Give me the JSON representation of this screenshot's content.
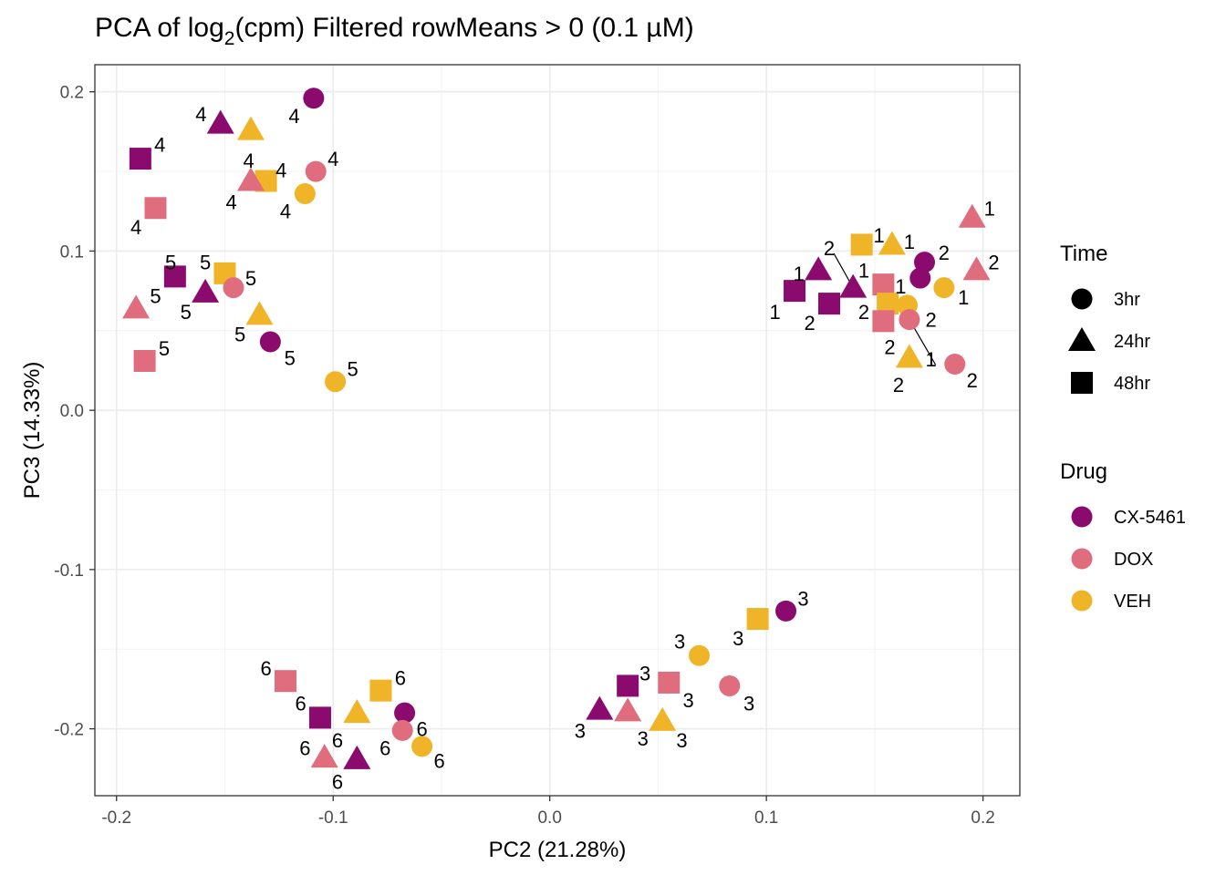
{
  "chart_data": {
    "type": "scatter",
    "title_main": "PCA of log",
    "title_sub": "2",
    "title_rest": "(cpm) Filtered rowMeans > 0 (0.1 µM)",
    "xlabel": "PC2 (21.28%)",
    "ylabel": "PC3 (14.33%)",
    "xlim": [
      -0.21,
      0.217
    ],
    "ylim": [
      -0.242,
      0.217
    ],
    "x_ticks": [
      -0.2,
      -0.1,
      0.0,
      0.1,
      0.2
    ],
    "x_tick_labels": [
      "-0.2",
      "-0.1",
      "0.0",
      "0.1",
      "0.2"
    ],
    "y_ticks": [
      -0.2,
      -0.1,
      0.0,
      0.1,
      0.2
    ],
    "y_tick_labels": [
      "-0.2",
      "-0.1",
      "0.0",
      "0.1",
      "0.2"
    ],
    "grid": true,
    "colors": {
      "CX-5461": "#8b0a6e",
      "DOX": "#e06d7d",
      "VEH": "#f0b429"
    },
    "legend_time": {
      "title": "Time",
      "items": [
        {
          "label": "3hr",
          "shape": "circle"
        },
        {
          "label": "24hr",
          "shape": "triangle"
        },
        {
          "label": "48hr",
          "shape": "square"
        }
      ]
    },
    "legend_drug": {
      "title": "Drug",
      "items": [
        {
          "label": "CX-5461",
          "drug": "CX-5461"
        },
        {
          "label": "DOX",
          "drug": "DOX"
        },
        {
          "label": "VEH",
          "drug": "VEH"
        }
      ]
    },
    "points": [
      {
        "x": -0.109,
        "y": 0.196,
        "drug": "CX-5461",
        "time": "3hr",
        "label": "4",
        "lx": -0.118,
        "ly": 0.185
      },
      {
        "x": -0.152,
        "y": 0.18,
        "drug": "CX-5461",
        "time": "24hr",
        "label": "4",
        "lx": -0.161,
        "ly": 0.186
      },
      {
        "x": -0.138,
        "y": 0.176,
        "drug": "VEH",
        "time": "24hr",
        "label": "4",
        "lx": -0.139,
        "ly": 0.157
      },
      {
        "x": -0.189,
        "y": 0.158,
        "drug": "CX-5461",
        "time": "48hr",
        "label": "4",
        "lx": -0.18,
        "ly": 0.167
      },
      {
        "x": -0.108,
        "y": 0.15,
        "drug": "DOX",
        "time": "3hr",
        "label": "4",
        "lx": -0.1,
        "ly": 0.158
      },
      {
        "x": -0.131,
        "y": 0.144,
        "drug": "VEH",
        "time": "48hr",
        "label": "4",
        "lx": -0.124,
        "ly": 0.151
      },
      {
        "x": -0.138,
        "y": 0.144,
        "drug": "DOX",
        "time": "24hr",
        "label": "4",
        "lx": -0.147,
        "ly": 0.131
      },
      {
        "x": -0.113,
        "y": 0.136,
        "drug": "VEH",
        "time": "3hr",
        "label": "4",
        "lx": -0.122,
        "ly": 0.125
      },
      {
        "x": -0.182,
        "y": 0.127,
        "drug": "DOX",
        "time": "48hr",
        "label": "4",
        "lx": -0.191,
        "ly": 0.115
      },
      {
        "x": -0.173,
        "y": 0.084,
        "drug": "CX-5461",
        "time": "48hr",
        "label": "5",
        "lx": -0.175,
        "ly": 0.093
      },
      {
        "x": -0.15,
        "y": 0.086,
        "drug": "VEH",
        "time": "48hr",
        "label": "5",
        "lx": -0.159,
        "ly": 0.093
      },
      {
        "x": -0.146,
        "y": 0.077,
        "drug": "DOX",
        "time": "3hr",
        "label": "5",
        "lx": -0.138,
        "ly": 0.083
      },
      {
        "x": -0.159,
        "y": 0.074,
        "drug": "CX-5461",
        "time": "24hr",
        "label": "5",
        "lx": -0.168,
        "ly": 0.062
      },
      {
        "x": -0.191,
        "y": 0.064,
        "drug": "DOX",
        "time": "24hr",
        "label": "5",
        "lx": -0.182,
        "ly": 0.072
      },
      {
        "x": -0.134,
        "y": 0.06,
        "drug": "VEH",
        "time": "24hr",
        "label": "5",
        "lx": -0.143,
        "ly": 0.048
      },
      {
        "x": -0.129,
        "y": 0.043,
        "drug": "CX-5461",
        "time": "3hr",
        "label": "5",
        "lx": -0.12,
        "ly": 0.033
      },
      {
        "x": -0.187,
        "y": 0.031,
        "drug": "DOX",
        "time": "48hr",
        "label": "5",
        "lx": -0.178,
        "ly": 0.039
      },
      {
        "x": -0.099,
        "y": 0.018,
        "drug": "VEH",
        "time": "3hr",
        "label": "5",
        "lx": -0.091,
        "ly": 0.026
      },
      {
        "x": 0.195,
        "y": 0.121,
        "drug": "DOX",
        "time": "24hr",
        "label": "1",
        "lx": 0.203,
        "ly": 0.127
      },
      {
        "x": 0.144,
        "y": 0.104,
        "drug": "VEH",
        "time": "48hr",
        "label": "1",
        "lx": 0.152,
        "ly": 0.11
      },
      {
        "x": 0.158,
        "y": 0.104,
        "drug": "VEH",
        "time": "24hr",
        "label": "1",
        "lx": 0.166,
        "ly": 0.106
      },
      {
        "x": 0.173,
        "y": 0.093,
        "drug": "CX-5461",
        "time": "3hr",
        "label": "2",
        "lx": 0.182,
        "ly": 0.099
      },
      {
        "x": 0.124,
        "y": 0.088,
        "drug": "CX-5461",
        "time": "24hr",
        "label": "1",
        "lx": 0.115,
        "ly": 0.086
      },
      {
        "x": 0.197,
        "y": 0.088,
        "drug": "DOX",
        "time": "24hr",
        "label": "2",
        "lx": 0.205,
        "ly": 0.093
      },
      {
        "x": 0.171,
        "y": 0.083,
        "drug": "CX-5461",
        "time": "3hr",
        "label": "1",
        "lx": 0.162,
        "ly": 0.078
      },
      {
        "x": 0.154,
        "y": 0.079,
        "drug": "DOX",
        "time": "48hr",
        "label": "1",
        "lx": 0.145,
        "ly": 0.088
      },
      {
        "x": 0.182,
        "y": 0.077,
        "drug": "VEH",
        "time": "3hr",
        "label": "1",
        "lx": 0.191,
        "ly": 0.071
      },
      {
        "x": 0.14,
        "y": 0.077,
        "drug": "CX-5461",
        "time": "24hr",
        "label": "2",
        "lx": 0.129,
        "ly": 0.102,
        "line": true
      },
      {
        "x": 0.113,
        "y": 0.075,
        "drug": "CX-5461",
        "time": "48hr",
        "label": "1",
        "lx": 0.104,
        "ly": 0.062
      },
      {
        "x": 0.156,
        "y": 0.067,
        "drug": "VEH",
        "time": "48hr",
        "label": "2",
        "lx": 0.145,
        "ly": 0.062
      },
      {
        "x": 0.129,
        "y": 0.067,
        "drug": "CX-5461",
        "time": "48hr",
        "label": "2",
        "lx": 0.12,
        "ly": 0.055
      },
      {
        "x": 0.165,
        "y": 0.066,
        "drug": "VEH",
        "time": "3hr",
        "label": "2",
        "lx": 0.176,
        "ly": 0.057
      },
      {
        "x": 0.154,
        "y": 0.056,
        "drug": "DOX",
        "time": "48hr",
        "label": "2",
        "lx": 0.157,
        "ly": 0.04
      },
      {
        "x": 0.166,
        "y": 0.057,
        "drug": "DOX",
        "time": "3hr",
        "label": "1",
        "lx": 0.176,
        "ly": 0.032,
        "line": true
      },
      {
        "x": 0.166,
        "y": 0.033,
        "drug": "VEH",
        "time": "24hr",
        "label": "2",
        "lx": 0.161,
        "ly": 0.016
      },
      {
        "x": 0.187,
        "y": 0.029,
        "drug": "DOX",
        "time": "3hr",
        "label": "2",
        "lx": 0.195,
        "ly": 0.019
      },
      {
        "x": 0.109,
        "y": -0.126,
        "drug": "CX-5461",
        "time": "3hr",
        "label": "3",
        "lx": 0.117,
        "ly": -0.118
      },
      {
        "x": 0.096,
        "y": -0.131,
        "drug": "VEH",
        "time": "48hr",
        "label": "3",
        "lx": 0.087,
        "ly": -0.143
      },
      {
        "x": 0.069,
        "y": -0.154,
        "drug": "VEH",
        "time": "3hr",
        "label": "3",
        "lx": 0.06,
        "ly": -0.145
      },
      {
        "x": 0.036,
        "y": -0.173,
        "drug": "CX-5461",
        "time": "48hr",
        "label": "3",
        "lx": 0.044,
        "ly": -0.165
      },
      {
        "x": 0.055,
        "y": -0.171,
        "drug": "DOX",
        "time": "48hr",
        "label": "3",
        "lx": 0.064,
        "ly": -0.182
      },
      {
        "x": 0.083,
        "y": -0.173,
        "drug": "DOX",
        "time": "3hr",
        "label": "3",
        "lx": 0.092,
        "ly": -0.184
      },
      {
        "x": 0.023,
        "y": -0.188,
        "drug": "CX-5461",
        "time": "24hr",
        "label": "3",
        "lx": 0.014,
        "ly": -0.201
      },
      {
        "x": 0.036,
        "y": -0.189,
        "drug": "DOX",
        "time": "24hr",
        "label": "3",
        "lx": 0.043,
        "ly": -0.206
      },
      {
        "x": 0.052,
        "y": -0.195,
        "drug": "VEH",
        "time": "24hr",
        "label": "3",
        "lx": 0.061,
        "ly": -0.207
      },
      {
        "x": -0.122,
        "y": -0.17,
        "drug": "DOX",
        "time": "48hr",
        "label": "6",
        "lx": -0.131,
        "ly": -0.162
      },
      {
        "x": -0.078,
        "y": -0.176,
        "drug": "VEH",
        "time": "48hr",
        "label": "6",
        "lx": -0.069,
        "ly": -0.168
      },
      {
        "x": -0.106,
        "y": -0.193,
        "drug": "CX-5461",
        "time": "48hr",
        "label": "6",
        "lx": -0.115,
        "ly": -0.184
      },
      {
        "x": -0.067,
        "y": -0.19,
        "drug": "CX-5461",
        "time": "3hr",
        "label": "6",
        "lx": -0.059,
        "ly": -0.2
      },
      {
        "x": -0.089,
        "y": -0.19,
        "drug": "VEH",
        "time": "24hr",
        "label": "6",
        "lx": -0.098,
        "ly": -0.207
      },
      {
        "x": -0.068,
        "y": -0.201,
        "drug": "DOX",
        "time": "3hr",
        "label": "6",
        "lx": -0.076,
        "ly": -0.212
      },
      {
        "x": -0.059,
        "y": -0.211,
        "drug": "VEH",
        "time": "3hr",
        "label": "6",
        "lx": -0.051,
        "ly": -0.22
      },
      {
        "x": -0.104,
        "y": -0.218,
        "drug": "DOX",
        "time": "24hr",
        "label": "6",
        "lx": -0.113,
        "ly": -0.212
      },
      {
        "x": -0.089,
        "y": -0.219,
        "drug": "CX-5461",
        "time": "24hr",
        "label": "6",
        "lx": -0.098,
        "ly": -0.233
      }
    ]
  }
}
